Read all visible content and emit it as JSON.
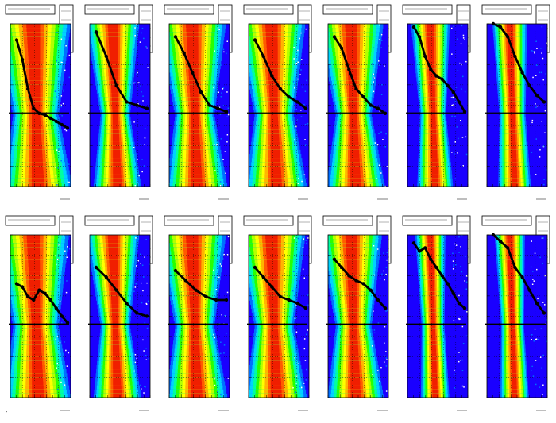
{
  "colors": {
    "palette": [
      "#1a00ff",
      "#0070ff",
      "#00d2ff",
      "#00ffa0",
      "#28ff00",
      "#b4ff00",
      "#ffff00",
      "#ffb400",
      "#ff5a00",
      "#f01e00"
    ],
    "profile": "#000000",
    "frame": "#000000",
    "background": "#ffffff"
  },
  "footer": {
    "text": "-",
    "number": ""
  },
  "chart_data": [
    {
      "type": "heatmap",
      "panel": 1,
      "row": 1,
      "width": 0.7,
      "slope": 0.4,
      "profile": [
        0.9,
        0.78,
        0.6,
        0.48,
        0.45,
        0.44,
        0.42,
        0.4,
        0.38,
        0.36
      ],
      "flat": true
    },
    {
      "type": "heatmap",
      "panel": 2,
      "row": 1,
      "width": 0.45,
      "slope": 0.5,
      "profile": [
        0.95,
        0.8,
        0.62,
        0.52,
        0.5,
        0.48
      ],
      "flat": true
    },
    {
      "type": "heatmap",
      "panel": 3,
      "row": 1,
      "width": 0.6,
      "slope": 0.45,
      "profile": [
        0.92,
        0.82,
        0.7,
        0.58,
        0.5,
        0.48,
        0.46
      ],
      "flat": true
    },
    {
      "type": "heatmap",
      "panel": 4,
      "row": 1,
      "width": 0.6,
      "slope": 0.45,
      "profile": [
        0.9,
        0.8,
        0.68,
        0.6,
        0.55,
        0.52,
        0.48
      ],
      "flat": true
    },
    {
      "type": "heatmap",
      "panel": 5,
      "row": 1,
      "width": 0.55,
      "slope": 0.5,
      "profile": [
        0.92,
        0.85,
        0.72,
        0.6,
        0.55,
        0.5,
        0.48,
        0.45
      ],
      "flat": true
    },
    {
      "type": "heatmap",
      "panel": 6,
      "row": 1,
      "width": 0.4,
      "slope": 0.3,
      "profile": [
        0.98,
        0.92,
        0.8,
        0.72,
        0.68,
        0.66,
        0.62,
        0.58,
        0.52,
        0.46
      ],
      "flat": true
    },
    {
      "type": "heatmap",
      "panel": 7,
      "row": 1,
      "width": 0.4,
      "slope": 0.2,
      "profile": [
        1.0,
        0.98,
        0.92,
        0.8,
        0.7,
        0.62,
        0.56,
        0.52
      ],
      "flat": true
    },
    {
      "type": "heatmap",
      "panel": 8,
      "row": 2,
      "width": 0.7,
      "slope": 0.35,
      "profile": [
        0.7,
        0.68,
        0.62,
        0.6,
        0.66,
        0.64,
        0.6,
        0.55,
        0.5,
        0.46
      ],
      "flat": true
    },
    {
      "type": "heatmap",
      "panel": 9,
      "row": 2,
      "width": 0.45,
      "slope": 0.5,
      "profile": [
        0.8,
        0.74,
        0.66,
        0.58,
        0.52,
        0.5
      ],
      "flat": true
    },
    {
      "type": "heatmap",
      "panel": 10,
      "row": 2,
      "width": 0.6,
      "slope": 0.45,
      "profile": [
        0.78,
        0.72,
        0.66,
        0.62,
        0.6,
        0.6
      ],
      "flat": true
    },
    {
      "type": "heatmap",
      "panel": 11,
      "row": 2,
      "width": 0.6,
      "slope": 0.45,
      "profile": [
        0.8,
        0.74,
        0.68,
        0.62,
        0.6,
        0.58,
        0.55
      ],
      "flat": true
    },
    {
      "type": "heatmap",
      "panel": 12,
      "row": 2,
      "width": 0.55,
      "slope": 0.45,
      "profile": [
        0.85,
        0.8,
        0.75,
        0.72,
        0.7,
        0.66,
        0.6,
        0.55
      ],
      "flat": true
    },
    {
      "type": "heatmap",
      "panel": 13,
      "row": 2,
      "width": 0.35,
      "slope": 0.2,
      "profile": [
        0.95,
        0.9,
        0.92,
        0.85,
        0.8,
        0.75,
        0.7,
        0.64,
        0.58,
        0.55
      ],
      "flat": true
    },
    {
      "type": "heatmap",
      "panel": 14,
      "row": 2,
      "width": 0.35,
      "slope": 0.2,
      "profile": [
        1.0,
        0.96,
        0.92,
        0.8,
        0.74,
        0.66,
        0.58,
        0.52
      ],
      "flat": true
    }
  ]
}
